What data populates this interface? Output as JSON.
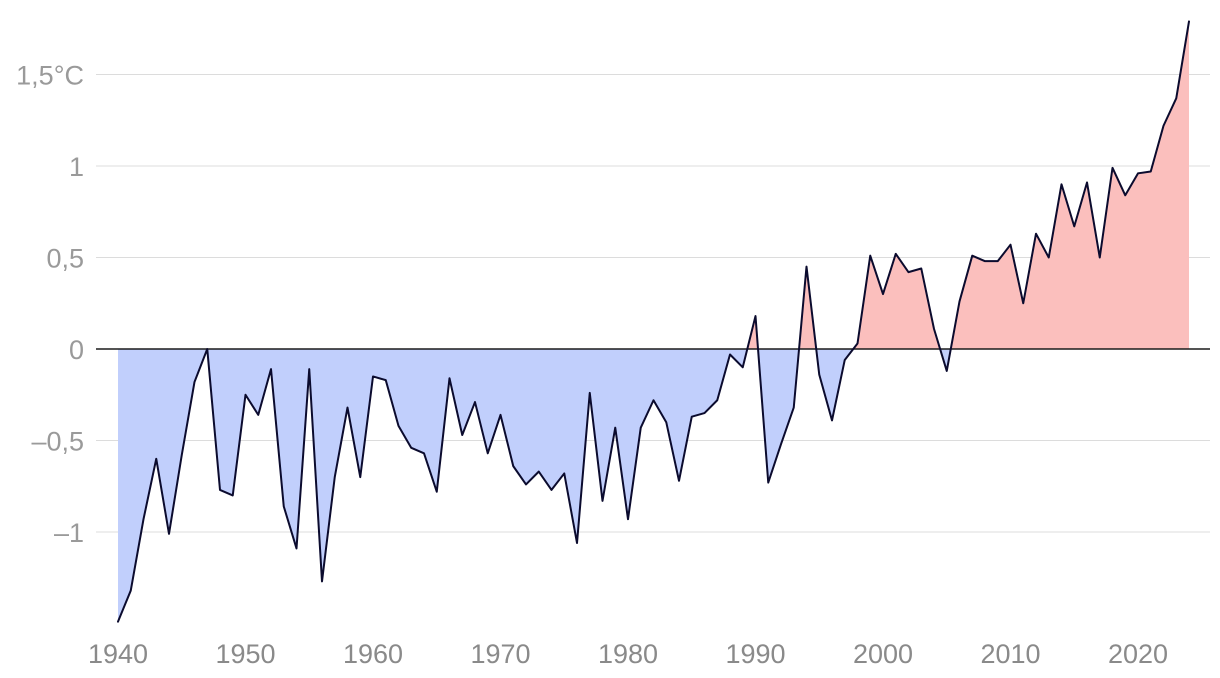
{
  "chart_data": {
    "type": "area",
    "title": "",
    "xlabel": "",
    "ylabel": "",
    "ylim": [
      -1.5,
      1.8
    ],
    "xlim": [
      1940,
      2024
    ],
    "grid": true,
    "colors": {
      "above_zero_fill": "#fbbfbd",
      "below_zero_fill": "#c1cffc",
      "line": "#0b0b2e",
      "zero_line": "#1b1b1b",
      "gridline": "#dcdcdc"
    },
    "y_ticks": [
      {
        "value": 1.5,
        "label": "1,5°C"
      },
      {
        "value": 1,
        "label": "1"
      },
      {
        "value": 0.5,
        "label": "0,5"
      },
      {
        "value": 0,
        "label": "0"
      },
      {
        "value": -0.5,
        "label": "–0,5"
      },
      {
        "value": -1,
        "label": "–1"
      }
    ],
    "x_ticks": [
      {
        "value": 1940,
        "label": "1940"
      },
      {
        "value": 1950,
        "label": "1950"
      },
      {
        "value": 1960,
        "label": "1960"
      },
      {
        "value": 1970,
        "label": "1970"
      },
      {
        "value": 1980,
        "label": "1980"
      },
      {
        "value": 1990,
        "label": "1990"
      },
      {
        "value": 2000,
        "label": "2000"
      },
      {
        "value": 2010,
        "label": "2010"
      },
      {
        "value": 2020,
        "label": "2020"
      }
    ],
    "x": [
      1940,
      1941,
      1942,
      1943,
      1944,
      1945,
      1946,
      1947,
      1948,
      1949,
      1950,
      1951,
      1952,
      1953,
      1954,
      1955,
      1956,
      1957,
      1958,
      1959,
      1960,
      1961,
      1962,
      1963,
      1964,
      1965,
      1966,
      1967,
      1968,
      1969,
      1970,
      1971,
      1972,
      1973,
      1974,
      1975,
      1976,
      1977,
      1978,
      1979,
      1980,
      1981,
      1982,
      1983,
      1984,
      1985,
      1986,
      1987,
      1988,
      1989,
      1990,
      1991,
      1992,
      1993,
      1994,
      1995,
      1996,
      1997,
      1998,
      1999,
      2000,
      2001,
      2002,
      2003,
      2004,
      2005,
      2006,
      2007,
      2008,
      2009,
      2010,
      2011,
      2012,
      2013,
      2014,
      2015,
      2016,
      2017,
      2018,
      2019,
      2020,
      2021,
      2022,
      2023,
      2024
    ],
    "series": [
      {
        "values": [
          -1.49,
          -1.32,
          -0.93,
          -0.6,
          -1.01,
          -0.58,
          -0.18,
          0.0,
          -0.77,
          -0.8,
          -0.25,
          -0.36,
          -0.11,
          -0.86,
          -1.09,
          -0.11,
          -1.27,
          -0.7,
          -0.32,
          -0.7,
          -0.15,
          -0.17,
          -0.42,
          -0.54,
          -0.57,
          -0.78,
          -0.16,
          -0.47,
          -0.29,
          -0.57,
          -0.36,
          -0.64,
          -0.74,
          -0.67,
          -0.77,
          -0.68,
          -1.06,
          -0.24,
          -0.83,
          -0.43,
          -0.93,
          -0.43,
          -0.28,
          -0.4,
          -0.72,
          -0.37,
          -0.35,
          -0.28,
          -0.03,
          -0.1,
          0.18,
          -0.73,
          -0.52,
          -0.32,
          0.45,
          -0.14,
          -0.39,
          -0.06,
          0.03,
          0.51,
          0.3,
          0.52,
          0.42,
          0.44,
          0.11,
          -0.12,
          0.26,
          0.51,
          0.48,
          0.48,
          0.57,
          0.25,
          0.63,
          0.5,
          0.9,
          0.67,
          0.91,
          0.5,
          0.99,
          0.84,
          0.96,
          0.97,
          1.22,
          1.37,
          1.79
        ]
      }
    ]
  }
}
